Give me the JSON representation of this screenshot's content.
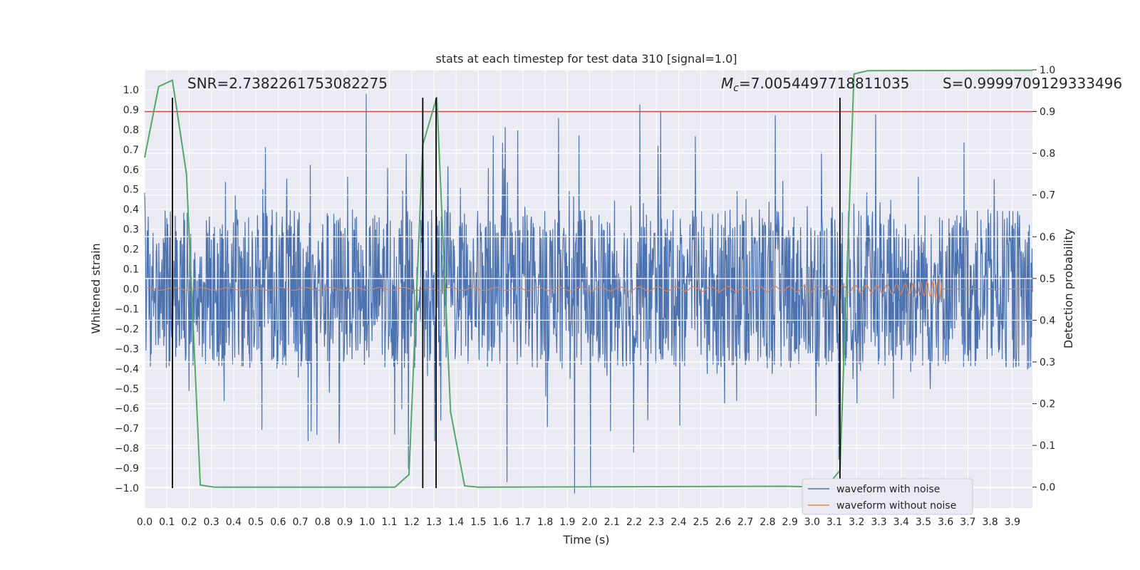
{
  "chart_data": {
    "type": "line",
    "title": "stats at each timestep for test data 310 [signal=1.0]",
    "xlabel": "Time (s)",
    "ylabel": "Whitened strain",
    "ylabel_right": "Detection probability",
    "xlim": [
      0.0,
      3.99
    ],
    "ylim": [
      -1.1,
      1.1
    ],
    "ylim_right": [
      -0.05,
      1.0
    ],
    "x_ticks": [
      "0.0",
      "0.1",
      "0.2",
      "0.3",
      "0.4",
      "0.5",
      "0.6",
      "0.7",
      "0.8",
      "0.9",
      "1.0",
      "1.1",
      "1.2",
      "1.3",
      "1.4",
      "1.5",
      "1.6",
      "1.7",
      "1.8",
      "1.9",
      "2.0",
      "2.1",
      "2.2",
      "2.3",
      "2.4",
      "2.5",
      "2.6",
      "2.7",
      "2.8",
      "2.9",
      "3.0",
      "3.1",
      "3.2",
      "3.3",
      "3.4",
      "3.5",
      "3.6",
      "3.7",
      "3.8",
      "3.9"
    ],
    "y_ticks": [
      "1.0",
      "0.9",
      "0.8",
      "0.7",
      "0.6",
      "0.5",
      "0.4",
      "0.3",
      "0.2",
      "0.1",
      "0.0",
      "−0.1",
      "−0.2",
      "−0.3",
      "−0.4",
      "−0.5",
      "−0.6",
      "−0.7",
      "−0.8",
      "−0.9",
      "−1.0"
    ],
    "y_ticks_right": [
      "1.0",
      "0.9",
      "0.8",
      "0.7",
      "0.6",
      "0.5",
      "0.4",
      "0.3",
      "0.2",
      "0.1",
      "0.0"
    ],
    "annotations": {
      "snr": "SNR=2.7382261753082275",
      "mc": "M",
      "mc_sub": "c",
      "mc_value": "=7.0054497718811035",
      "s": "S=0.9999709129333496"
    },
    "threshold_right": 0.9,
    "vertical_lines_x": [
      0.125,
      1.25,
      1.31,
      3.125
    ],
    "detection_probability": {
      "x": [
        0.0,
        0.063,
        0.125,
        0.188,
        0.25,
        0.313,
        1.125,
        1.188,
        1.25,
        1.313,
        1.375,
        1.438,
        1.5,
        2.875,
        3.063,
        3.125,
        3.188,
        3.25,
        3.99
      ],
      "y": [
        0.79,
        0.96,
        0.975,
        0.75,
        0.005,
        0.0,
        0.0,
        0.03,
        0.82,
        0.935,
        0.18,
        0.003,
        0.0,
        0.002,
        0.0,
        0.04,
        0.99,
        0.998,
        0.999
      ]
    },
    "series": [
      {
        "name": "waveform with noise",
        "color": "#4c72b0"
      },
      {
        "name": "waveform without noise",
        "color": "#dd8452"
      },
      {
        "name": "detection probability",
        "color": "#55a868"
      }
    ],
    "threshold_color": "#c44e52",
    "vline_color": "#000000",
    "legend": {
      "placement": "bottom-right",
      "items": [
        "waveform with noise",
        "waveform without noise"
      ]
    }
  }
}
